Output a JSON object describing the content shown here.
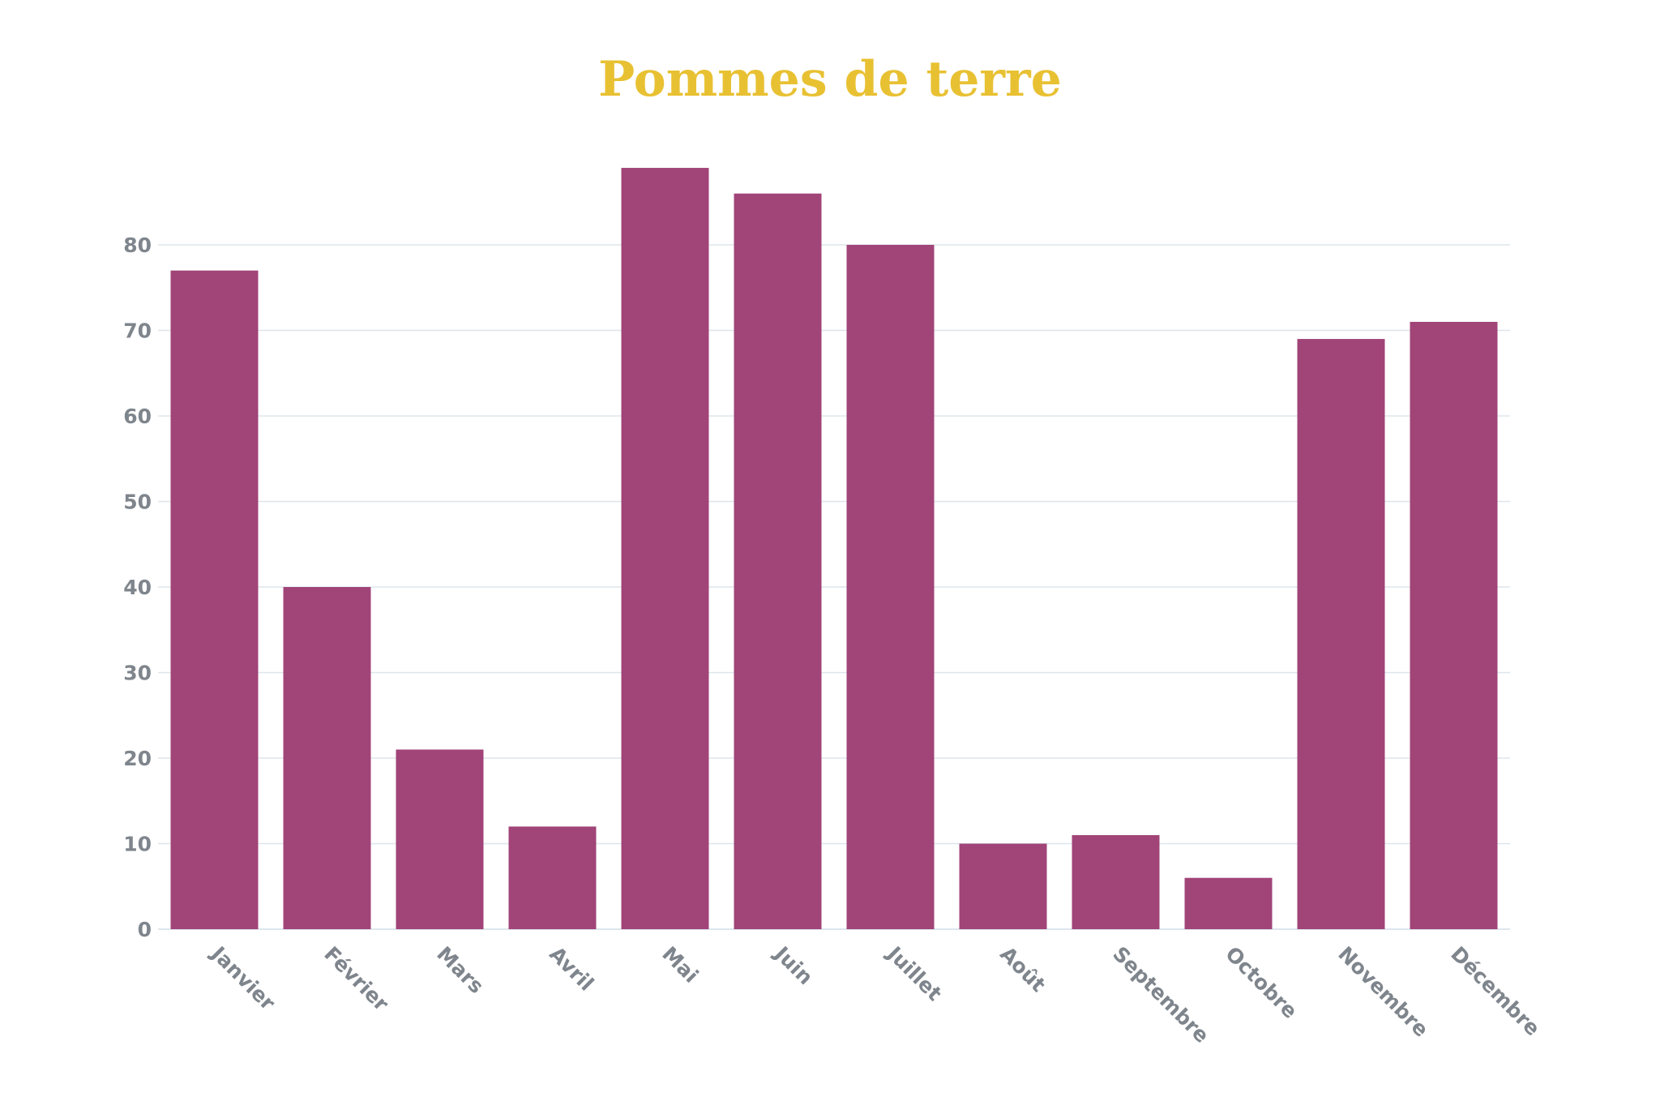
{
  "chart_data": {
    "type": "bar",
    "title": "Pommes de terre",
    "xlabel": "",
    "ylabel": "",
    "categories": [
      "Janvier",
      "Février",
      "Mars",
      "Avril",
      "Mai",
      "Juin",
      "Juillet",
      "Août",
      "Septembre",
      "Octobre",
      "Novembre",
      "Décembre"
    ],
    "values": [
      77,
      40,
      21,
      12,
      89,
      86,
      80,
      10,
      11,
      6,
      69,
      71
    ],
    "ylim": [
      0,
      89
    ],
    "yticks": [
      0,
      10,
      20,
      30,
      40,
      50,
      60,
      70,
      80
    ],
    "grid": true,
    "legend": "none",
    "colors": {
      "bar": "#a14478",
      "title": "#e8c133",
      "grid": "#dde6ec",
      "tick_text": "#7f858c"
    }
  }
}
